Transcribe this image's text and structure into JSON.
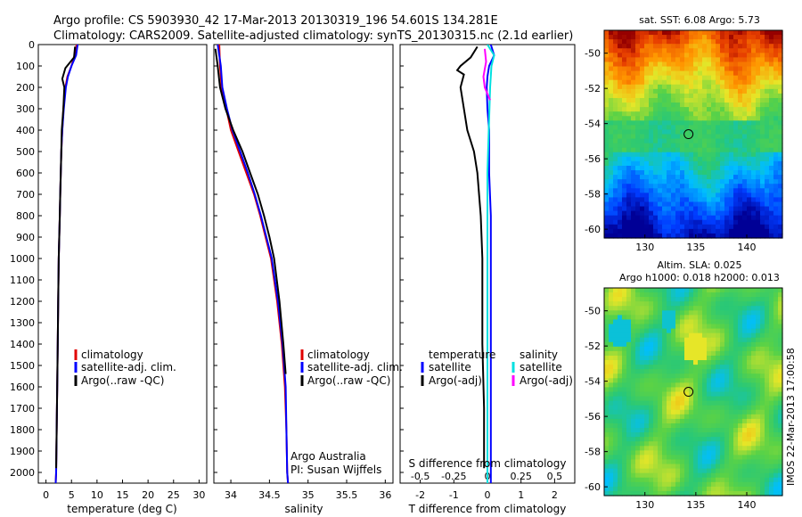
{
  "title": {
    "line1": "Argo profile: CS 5903930_42 17-Mar-2013 20130319_196 54.601S 134.281E",
    "line2": "Climatology: CARS2009. Satellite-adjusted climatology: synTS_20130315.nc (2.1d earlier)"
  },
  "sst_title": "sat. SST: 6.08 Argo: 5.73",
  "sla_title1": "Altim. SLA: 0.025",
  "sla_title2": "Argo h1000: 0.018 h2000: 0.013",
  "timestamp": "IMOS 22-Mar-2013 17:00:58",
  "credits": {
    "line1": "Argo Australia",
    "line2": "PI: Susan Wijffels"
  },
  "colors": {
    "clim": "#e00000",
    "sat": "#0000ff",
    "argo": "#000000",
    "sat_s": "#00e0e0",
    "argo_s": "#ff00ff"
  },
  "legend1": {
    "clim": "climatology",
    "sat": "satellite-adj. clim.",
    "argo": "Argo(..raw -QC)"
  },
  "legend2": {
    "clim": "climatology",
    "sat": "satellite-adj. clim.",
    "argo": "Argo(..raw -QC)"
  },
  "legend3": {
    "temp": "temperature",
    "sal": "salinity",
    "tsat": "satellite",
    "targo": "Argo(-adj)",
    "ssat": "satellite",
    "sargo": "Argo(-adj)"
  },
  "chart_data": [
    {
      "type": "line",
      "id": "temperature",
      "xlabel": "temperature (deg C)",
      "xlim": [
        -1.5,
        31.5
      ],
      "ylim": [
        2050,
        0
      ],
      "xticks": [
        0,
        5,
        10,
        15,
        20,
        25,
        30
      ],
      "yticks": [
        0,
        100,
        200,
        300,
        400,
        500,
        600,
        700,
        800,
        900,
        1000,
        1100,
        1200,
        1300,
        1400,
        1500,
        1600,
        1700,
        1800,
        1900,
        2000
      ],
      "series": [
        {
          "name": "climatology",
          "color": "clim",
          "x": [
            6.0,
            5.6,
            5.0,
            4.2,
            3.8,
            3.4,
            3.2,
            3.0,
            2.9,
            2.8,
            2.7,
            2.5,
            2.4,
            2.3,
            2.2,
            2.1,
            2.0,
            1.9
          ],
          "y": [
            0,
            50,
            100,
            150,
            200,
            300,
            400,
            500,
            600,
            700,
            800,
            1000,
            1200,
            1400,
            1600,
            1800,
            2000,
            2050
          ]
        },
        {
          "name": "satellite-adj. clim.",
          "color": "sat",
          "x": [
            6.2,
            5.9,
            5.0,
            4.3,
            3.9,
            3.5,
            3.2,
            3.0,
            2.9,
            2.8,
            2.7,
            2.5,
            2.4,
            2.3,
            2.2,
            2.1,
            2.0,
            1.9
          ],
          "y": [
            0,
            50,
            100,
            150,
            200,
            300,
            400,
            500,
            600,
            700,
            800,
            1000,
            1200,
            1400,
            1600,
            1800,
            2000,
            2050
          ]
        },
        {
          "name": "Argo(..raw -QC)",
          "color": "argo",
          "x": [
            5.7,
            5.5,
            3.8,
            3.2,
            3.6,
            3.4,
            3.1,
            3.0,
            2.9,
            2.8,
            2.7,
            2.5,
            2.4,
            2.3,
            2.2,
            2.1,
            2.0
          ],
          "y": [
            10,
            60,
            110,
            160,
            200,
            300,
            400,
            500,
            600,
            700,
            800,
            1000,
            1200,
            1400,
            1600,
            1800,
            1980
          ]
        }
      ]
    },
    {
      "type": "line",
      "id": "salinity",
      "xlabel": "salinity",
      "xlim": [
        33.78,
        36.1
      ],
      "ylim": [
        2050,
        0
      ],
      "xticks": [
        34,
        34.5,
        35,
        35.5,
        36
      ],
      "series": [
        {
          "name": "climatology",
          "color": "clim",
          "x": [
            33.85,
            33.86,
            33.88,
            33.94,
            34.0,
            34.1,
            34.2,
            34.3,
            34.38,
            34.45,
            34.52,
            34.6,
            34.66,
            34.7,
            34.72,
            34.73,
            34.74
          ],
          "y": [
            0,
            100,
            200,
            300,
            400,
            500,
            600,
            700,
            800,
            900,
            1000,
            1200,
            1400,
            1600,
            1800,
            2000,
            2050
          ]
        },
        {
          "name": "satellite-adj. clim.",
          "color": "sat",
          "x": [
            33.83,
            33.87,
            33.89,
            33.95,
            34.02,
            34.12,
            34.22,
            34.31,
            34.39,
            34.46,
            34.53,
            34.61,
            34.67,
            34.71,
            34.72,
            34.73,
            34.74
          ],
          "y": [
            0,
            100,
            200,
            300,
            400,
            500,
            600,
            700,
            800,
            900,
            1000,
            1200,
            1400,
            1600,
            1800,
            2000,
            2050
          ]
        },
        {
          "name": "Argo(..raw -QC)",
          "color": "argo",
          "x": [
            33.8,
            33.83,
            33.86,
            33.93,
            34.03,
            34.15,
            34.25,
            34.35,
            34.43,
            34.5,
            34.56,
            34.63,
            34.68,
            34.71
          ],
          "y": [
            20,
            100,
            200,
            300,
            400,
            500,
            600,
            700,
            800,
            900,
            1000,
            1200,
            1400,
            1540
          ]
        }
      ]
    },
    {
      "type": "line",
      "id": "difference",
      "xlabel": "T difference from climatology",
      "xlabel_top": "S difference from climatology",
      "xlim": [
        -2.6,
        2.6
      ],
      "ylim": [
        2050,
        0
      ],
      "xticks": [
        -2,
        -1,
        0,
        1,
        2
      ],
      "xticks_top": [
        -0.5,
        -0.25,
        0,
        0.25,
        0.5
      ],
      "xticks_top_labels": [
        "-0.5",
        "-0.25",
        "0",
        "0.25",
        "0.5"
      ],
      "series": [
        {
          "name": "T satellite",
          "color": "sat",
          "axis": "T",
          "x": [
            0.1,
            0.2,
            0.05,
            0.0,
            -0.02,
            0.0,
            0.05,
            0.05,
            0.1,
            0.1,
            0.1,
            0.1,
            0.1,
            0.1,
            0.1,
            0.1
          ],
          "y": [
            0,
            50,
            100,
            150,
            200,
            300,
            400,
            600,
            800,
            1000,
            1200,
            1400,
            1600,
            1800,
            2000,
            2050
          ]
        },
        {
          "name": "T Argo(-adj)",
          "color": "argo",
          "axis": "T",
          "x": [
            -0.3,
            -0.5,
            -0.8,
            -0.9,
            -0.7,
            -0.8,
            -0.7,
            -0.6,
            -0.4,
            -0.3,
            -0.2,
            -0.15,
            -0.15,
            -0.1,
            -0.1
          ],
          "y": [
            10,
            60,
            100,
            120,
            140,
            200,
            300,
            400,
            500,
            600,
            800,
            1000,
            1400,
            1700,
            1980
          ]
        },
        {
          "name": "S satellite",
          "color": "sat_s",
          "axis": "S",
          "x": [
            0.0,
            0.05,
            0.03,
            0.02,
            0.01,
            0.0,
            0.0,
            0.0,
            0.0,
            0.0,
            0.0
          ],
          "y": [
            0,
            50,
            100,
            200,
            400,
            600,
            800,
            1200,
            1600,
            2000,
            2050
          ]
        },
        {
          "name": "S Argo(-adj)",
          "color": "argo_s",
          "axis": "S",
          "x": [
            -0.02,
            -0.01,
            -0.03,
            -0.02,
            0.02
          ],
          "y": [
            20,
            80,
            150,
            200,
            260
          ]
        }
      ]
    },
    {
      "type": "heatmap",
      "id": "sst-map",
      "title": "sat. SST: 6.08 Argo: 5.73",
      "xlim": [
        126,
        143.5
      ],
      "ylim": [
        -60.5,
        -48.7
      ],
      "xticks": [
        130,
        135,
        140
      ],
      "yticks": [
        -50,
        -52,
        -54,
        -56,
        -58,
        -60
      ],
      "marker": {
        "lon": 134.281,
        "lat": -54.601
      }
    },
    {
      "type": "heatmap",
      "id": "sla-map",
      "title": "Altim. SLA: 0.025",
      "xlim": [
        126,
        143.5
      ],
      "ylim": [
        -60.5,
        -48.7
      ],
      "xticks": [
        130,
        135,
        140
      ],
      "yticks": [
        -50,
        -52,
        -54,
        -56,
        -58,
        -60
      ],
      "marker": {
        "lon": 134.281,
        "lat": -54.601
      }
    }
  ]
}
